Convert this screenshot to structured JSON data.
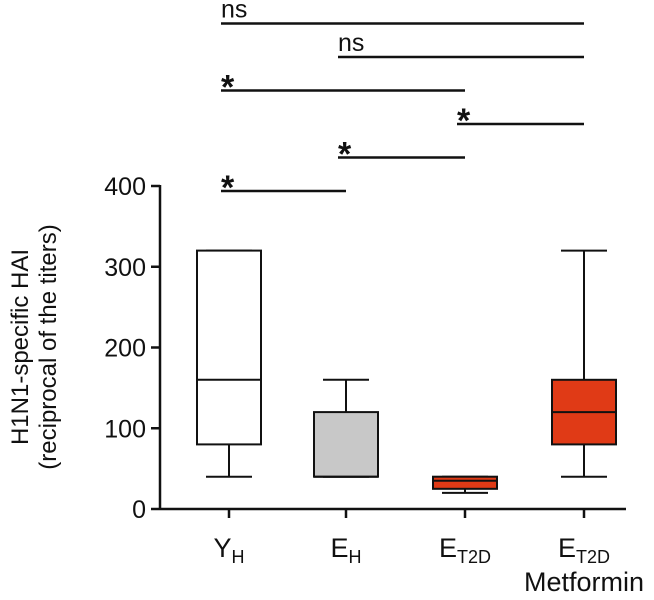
{
  "chart_data": {
    "type": "box",
    "ylabel_line1": "H1N1-specific HAI",
    "ylabel_line2": "(reciprocal of the titers)",
    "ylim": [
      0,
      400
    ],
    "yticks": [
      0,
      100,
      200,
      300,
      400
    ],
    "grid": false,
    "categories": [
      {
        "main": "Y",
        "sub": "H",
        "extra": ""
      },
      {
        "main": "E",
        "sub": "H",
        "extra": ""
      },
      {
        "main": "E",
        "sub": "T2D",
        "extra": ""
      },
      {
        "main": "E",
        "sub": "T2D",
        "extra": "Metformin"
      }
    ],
    "boxes": [
      {
        "min": 40,
        "q1": 80,
        "median": 160,
        "q3": 320,
        "max": 320,
        "color": "#ffffff"
      },
      {
        "min": 40,
        "q1": 40,
        "median": 40,
        "q3": 120,
        "max": 160,
        "color": "#c8c8c8"
      },
      {
        "min": 20,
        "q1": 25,
        "median": 35,
        "q3": 40,
        "max": 40,
        "color": "#e03a16"
      },
      {
        "min": 40,
        "q1": 80,
        "median": 120,
        "q3": 160,
        "max": 320,
        "color": "#e03a16"
      }
    ],
    "comparisons": [
      {
        "from": 0,
        "to": 1,
        "label": "*"
      },
      {
        "from": 0,
        "to": 2,
        "label": "*"
      },
      {
        "from": 0,
        "to": 3,
        "label": "ns"
      },
      {
        "from": 1,
        "to": 2,
        "label": "*"
      },
      {
        "from": 1,
        "to": 3,
        "label": "ns"
      },
      {
        "from": 2,
        "to": 3,
        "label": "*"
      }
    ]
  }
}
